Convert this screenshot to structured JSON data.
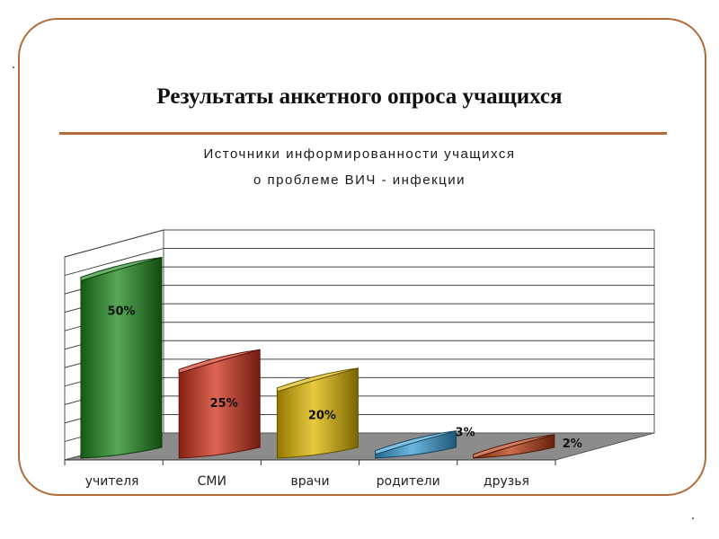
{
  "chart_data": {
    "type": "bar",
    "title": "Результаты анкетного опроса учащихся",
    "subtitle": [
      "Источники информированности учащихся",
      "о проблеме ВИЧ - инфекции"
    ],
    "categories": [
      "учителя",
      "СМИ",
      "врачи",
      "родители",
      "друзья"
    ],
    "values": [
      50,
      25,
      20,
      3,
      2
    ],
    "data_labels": [
      "50%",
      "25%",
      "20%",
      "3%",
      "2%"
    ],
    "ylim": [
      0,
      55
    ],
    "grid": true,
    "legend": "none",
    "colors": [
      "#1f8a1f",
      "#d0311a",
      "#e0b800",
      "#3a9fd6",
      "#b83c12"
    ]
  }
}
